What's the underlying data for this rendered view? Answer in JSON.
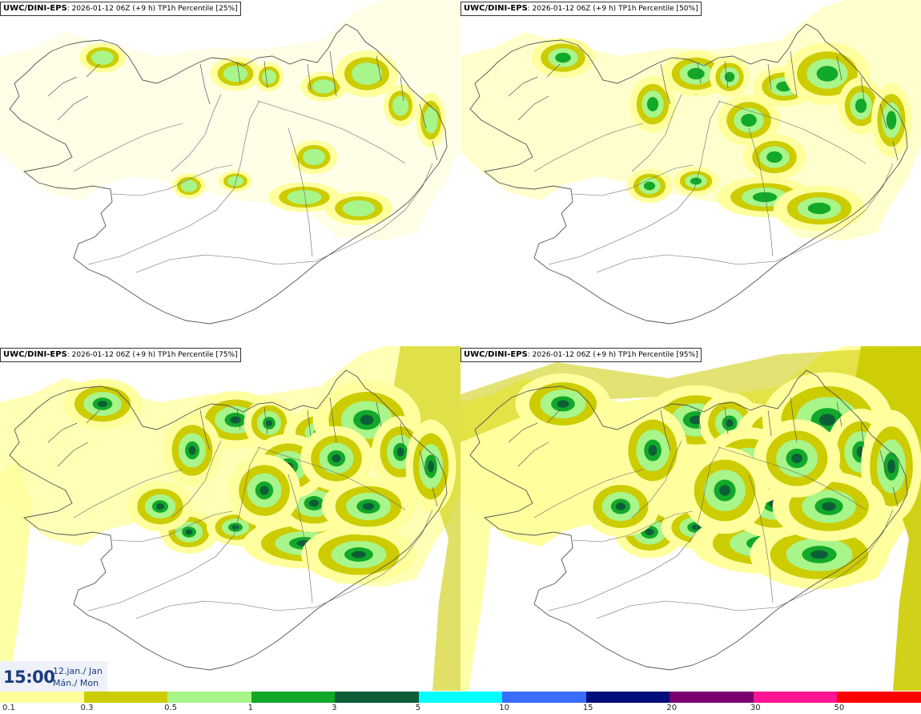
{
  "panels": [
    {
      "source": "UWC/DINI-EPS",
      "run": "2026-01-12 06Z",
      "lead": "(+9 h)",
      "title": "TP1h Percentile [25%]",
      "level": 0
    },
    {
      "source": "UWC/DINI-EPS",
      "run": "2026-01-12 06Z",
      "lead": "(+9 h)",
      "title": "TP1h Percentile [50%]",
      "level": 1
    },
    {
      "source": "UWC/DINI-EPS",
      "run": "2026-01-12 06Z",
      "lead": "(+9 h)",
      "title": "TP1h Percentile [75%]",
      "level": 2
    },
    {
      "source": "UWC/DINI-EPS",
      "run": "2026-01-12 06Z",
      "lead": "(+9 h)",
      "title": "TP1h Percentile [95%]",
      "level": 3
    }
  ],
  "time": {
    "main": "15:00",
    "date_line1": "12.jan./ Jan",
    "date_line2": "Mán./ Mon"
  },
  "legend": {
    "ticks": [
      "0.1",
      "0.3",
      "0.5",
      "1",
      "3",
      "5",
      "10",
      "15",
      "20",
      "30",
      "50"
    ],
    "colors": [
      "#ffff9e",
      "#cccc00",
      "#a8f58a",
      "#12a82a",
      "#0d5e38",
      "#00ffff",
      "#3a6cff",
      "#000e7a",
      "#7a006e",
      "#ff1493",
      "#ff0000"
    ]
  },
  "colors": {
    "map_outline": "#555555",
    "roads": "#666666"
  }
}
